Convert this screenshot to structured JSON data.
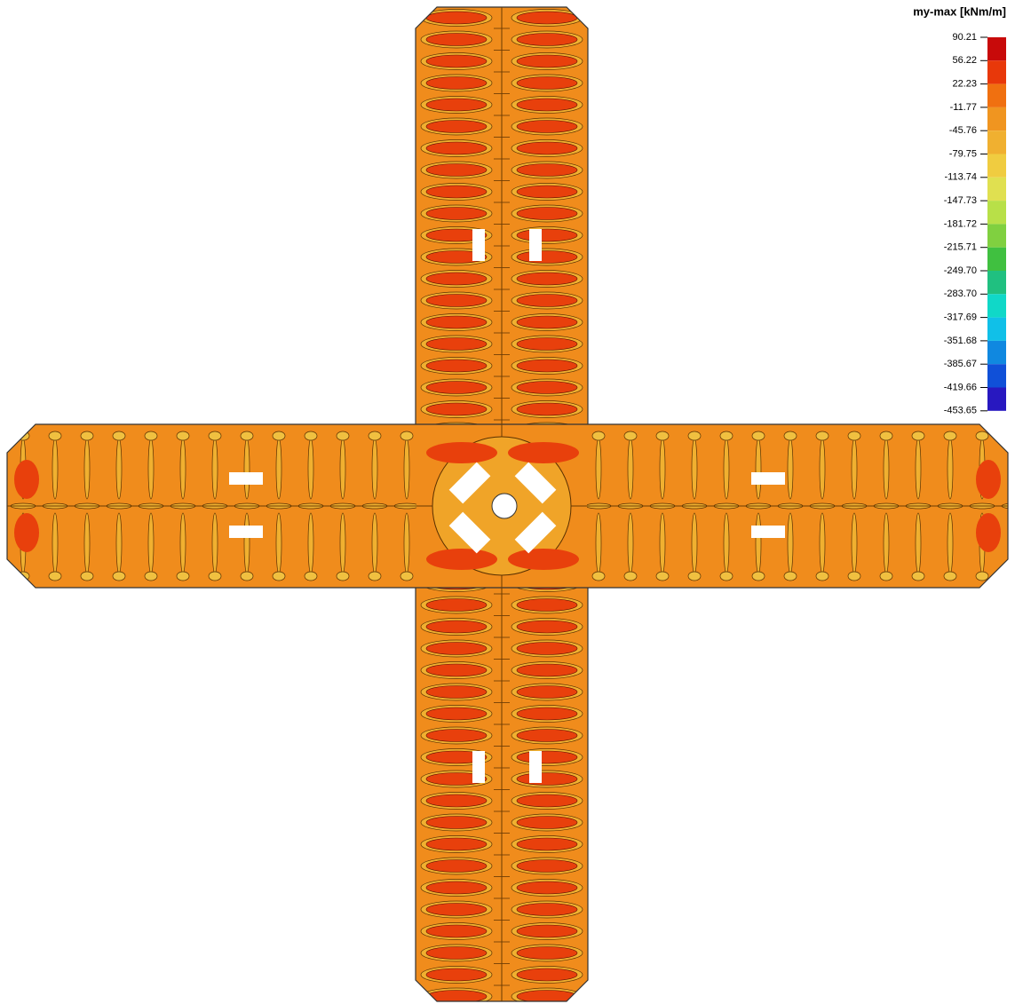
{
  "legend": {
    "title": "my-max [kNm/m]",
    "labels": [
      "90.21",
      "56.22",
      "22.23",
      "-11.77",
      "-45.76",
      "-79.75",
      "-113.74",
      "-147.73",
      "-181.72",
      "-215.71",
      "-249.70",
      "-283.70",
      "-317.69",
      "-351.68",
      "-385.67",
      "-419.66",
      "-453.65"
    ],
    "colors": [
      "#c80a0a",
      "#e8380a",
      "#f07010",
      "#f09520",
      "#f0b030",
      "#f0cc40",
      "#e0e050",
      "#b8e048",
      "#80d040",
      "#40c040",
      "#20c080",
      "#10d8c8",
      "#10c0e8",
      "#1088e0",
      "#1050d8",
      "#2818c0"
    ]
  }
}
